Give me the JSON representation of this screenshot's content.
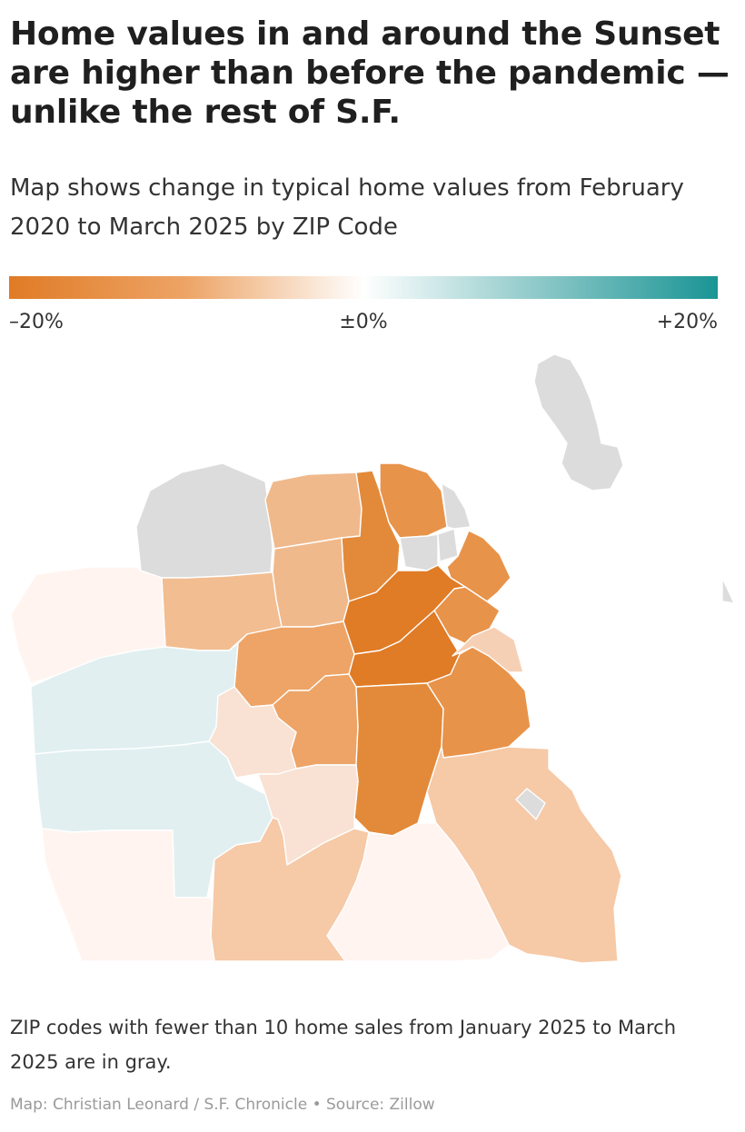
{
  "header": {
    "title": "Home values in and around the Sunset are higher than before the pandemic — unlike the rest of S.F.",
    "subtitle": "Map shows change in typical home values from February 2020 to March 2025 by ZIP Code"
  },
  "legend": {
    "min_label": "–20%",
    "mid_label": "±0%",
    "max_label": "+20%",
    "min_value": -20,
    "max_value": 20,
    "color_negative": "#e07b26",
    "color_neutral": "#ffffff",
    "color_positive": "#1a9494",
    "color_no_data": "#dcdcdc"
  },
  "map": {
    "type": "choropleth",
    "region": "San Francisco ZIP codes"
  },
  "footer": {
    "note": "ZIP codes with fewer than 10 home sales from January 2025 to March 2025 are in gray.",
    "credit": "Map: Christian Leonard / S.F. Chronicle • Source: Zillow"
  }
}
